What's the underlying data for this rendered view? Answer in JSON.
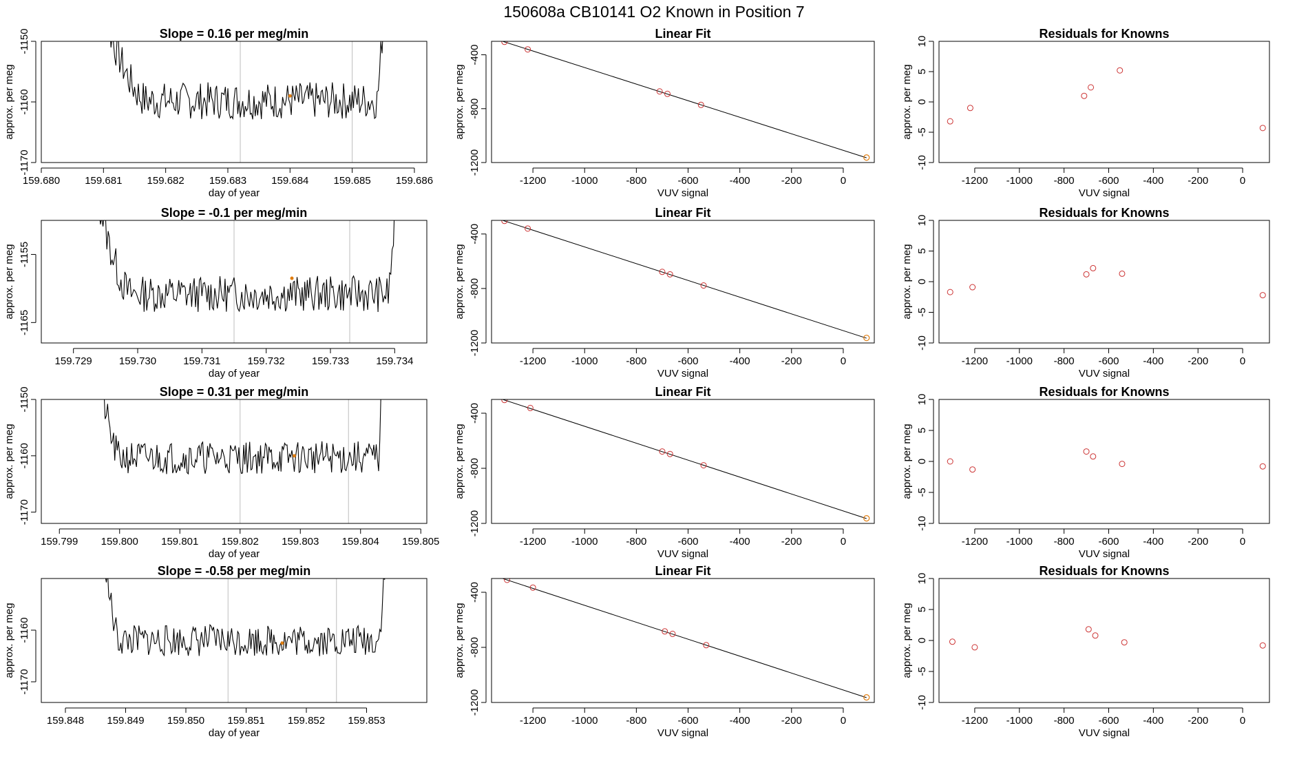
{
  "figure": {
    "title": "150608a      CB10141    O2 Known in Position  7"
  },
  "colors": {
    "trace": "#000000",
    "marker": "#e07d10",
    "fit_point": "#cc3333",
    "vline": "#bdbdbd",
    "axis": "#000000"
  },
  "chart_data": [
    {
      "type": "line",
      "panel": "slope",
      "row": 0,
      "title": "Slope =  0.16  per meg/min",
      "xlabel": "day of year",
      "ylabel": "approx. per meg",
      "xlim": [
        159.68,
        159.6862
      ],
      "ylim": [
        -1170,
        -1150
      ],
      "xticks": [
        159.68,
        159.681,
        159.682,
        159.683,
        159.684,
        159.685,
        159.686
      ],
      "xtick_labels": [
        "159.680",
        "159.681",
        "159.682",
        "159.683",
        "159.684",
        "159.685",
        "159.686"
      ],
      "yticks": [
        -1170,
        -1160,
        -1150
      ],
      "ytick_labels": [
        "-1170",
        "-1160",
        "-1150"
      ],
      "vlines": [
        159.6832,
        159.685
      ],
      "trace": {
        "x_start": 159.6808,
        "x_end": 159.6856,
        "level": -1159.8,
        "noise": 2.2,
        "edge_left": 159.6817,
        "edge_right": 159.6854,
        "rise": 22,
        "seed": 7
      },
      "marker": {
        "x": 159.684,
        "y": -1159.0
      }
    },
    {
      "type": "scatter",
      "panel": "fit",
      "row": 0,
      "title": "Linear Fit",
      "xlabel": "VUV signal",
      "ylabel": "approx. per meg",
      "xlim": [
        -1360,
        120
      ],
      "ylim": [
        -1200,
        -300
      ],
      "xticks": [
        -1200,
        -1000,
        -800,
        -600,
        -400,
        -200,
        0
      ],
      "xtick_labels": [
        "-1200",
        "-1000",
        "-800",
        "-600",
        "-400",
        "-200",
        "0"
      ],
      "yticks": [
        -1200,
        -800,
        -400
      ],
      "ytick_labels": [
        "-1200",
        "-800",
        "-400"
      ],
      "line": {
        "x": [
          -1330,
          90
        ],
        "y": [
          -292,
          -1165
        ]
      },
      "points": {
        "x": [
          -1310,
          -1220,
          -710,
          -680,
          -550
        ],
        "y": [
          -304,
          -360,
          -672,
          -690,
          -772
        ]
      },
      "known": {
        "x": 90,
        "y": -1163
      }
    },
    {
      "type": "scatter",
      "panel": "residuals",
      "row": 0,
      "title": "Residuals for Knowns",
      "xlabel": "VUV signal",
      "ylabel": "approx. per meg",
      "xlim": [
        -1360,
        120
      ],
      "ylim": [
        -10,
        10
      ],
      "xticks": [
        -1200,
        -1000,
        -800,
        -600,
        -400,
        -200,
        0
      ],
      "xtick_labels": [
        "-1200",
        "-1000",
        "-800",
        "-600",
        "-400",
        "-200",
        "0"
      ],
      "yticks": [
        -10,
        -5,
        0,
        5,
        10
      ],
      "ytick_labels": [
        "-10",
        "-5",
        "0",
        "5",
        "10"
      ],
      "points": {
        "x": [
          -1310,
          -1220,
          -710,
          -680,
          -550,
          90
        ],
        "y": [
          -3.2,
          -1.0,
          1.0,
          2.4,
          5.2,
          -4.3
        ]
      }
    },
    {
      "type": "line",
      "panel": "slope",
      "row": 1,
      "title": "Slope =  -0.1  per meg/min",
      "xlabel": "day of year",
      "ylabel": "approx. per meg",
      "xlim": [
        159.7285,
        159.7345
      ],
      "ylim": [
        -1168,
        -1150
      ],
      "xticks": [
        159.729,
        159.73,
        159.731,
        159.732,
        159.733,
        159.734
      ],
      "xtick_labels": [
        "159.729",
        "159.730",
        "159.731",
        "159.732",
        "159.733",
        "159.734"
      ],
      "yticks": [
        -1165,
        -1155
      ],
      "ytick_labels": [
        "-1165",
        "-1155"
      ],
      "vlines": [
        159.7315,
        159.7333
      ],
      "trace": {
        "x_start": 159.7293,
        "x_end": 159.7341,
        "level": -1160.8,
        "noise": 1.9,
        "edge_left": 159.7299,
        "edge_right": 159.7339,
        "rise": 18,
        "seed": 13
      },
      "marker": {
        "x": 159.7324,
        "y": -1158.5
      }
    },
    {
      "type": "scatter",
      "panel": "fit",
      "row": 1,
      "title": "Linear Fit",
      "xlabel": "VUV signal",
      "ylabel": "approx. per meg",
      "xlim": [
        -1360,
        120
      ],
      "ylim": [
        -1200,
        -300
      ],
      "xticks": [
        -1200,
        -1000,
        -800,
        -600,
        -400,
        -200,
        0
      ],
      "xtick_labels": [
        "-1200",
        "-1000",
        "-800",
        "-600",
        "-400",
        "-200",
        "0"
      ],
      "yticks": [
        -1200,
        -800,
        -400
      ],
      "ytick_labels": [
        "-1200",
        "-800",
        "-400"
      ],
      "line": {
        "x": [
          -1330,
          90
        ],
        "y": [
          -292,
          -1165
        ]
      },
      "points": {
        "x": [
          -1310,
          -1220,
          -700,
          -670,
          -540
        ],
        "y": [
          -304,
          -360,
          -678,
          -696,
          -778
        ]
      },
      "known": {
        "x": 90,
        "y": -1163
      }
    },
    {
      "type": "scatter",
      "panel": "residuals",
      "row": 1,
      "title": "Residuals for Knowns",
      "xlabel": "VUV signal",
      "ylabel": "approx. per meg",
      "xlim": [
        -1360,
        120
      ],
      "ylim": [
        -10,
        10
      ],
      "xticks": [
        -1200,
        -1000,
        -800,
        -600,
        -400,
        -200,
        0
      ],
      "xtick_labels": [
        "-1200",
        "-1000",
        "-800",
        "-600",
        "-400",
        "-200",
        "0"
      ],
      "yticks": [
        -10,
        -5,
        0,
        5,
        10
      ],
      "ytick_labels": [
        "-10",
        "-5",
        "0",
        "5",
        "10"
      ],
      "points": {
        "x": [
          -1310,
          -1210,
          -700,
          -670,
          -540,
          90
        ],
        "y": [
          -1.7,
          -0.9,
          1.2,
          2.2,
          1.3,
          -2.2
        ]
      }
    },
    {
      "type": "line",
      "panel": "slope",
      "row": 2,
      "title": "Slope =  0.31  per meg/min",
      "xlabel": "day of year",
      "ylabel": "approx. per meg",
      "xlim": [
        159.7987,
        159.8051
      ],
      "ylim": [
        -1172,
        -1150
      ],
      "xticks": [
        159.799,
        159.8,
        159.801,
        159.802,
        159.803,
        159.804,
        159.805
      ],
      "xtick_labels": [
        "159.799",
        "159.800",
        "159.801",
        "159.802",
        "159.803",
        "159.804",
        "159.805"
      ],
      "yticks": [
        -1170,
        -1160,
        -1150
      ],
      "ytick_labels": [
        "-1170",
        "-1160",
        "-1150"
      ],
      "vlines": [
        159.802,
        159.8038
      ],
      "trace": {
        "x_start": 159.7996,
        "x_end": 159.8044,
        "level": -1160.3,
        "noise": 2.1,
        "edge_left": 159.8,
        "edge_right": 159.8043,
        "rise": 20,
        "seed": 21
      },
      "marker": {
        "x": 159.8029,
        "y": -1160.0
      }
    },
    {
      "type": "scatter",
      "panel": "fit",
      "row": 2,
      "title": "Linear Fit",
      "xlabel": "VUV signal",
      "ylabel": "approx. per meg",
      "xlim": [
        -1360,
        120
      ],
      "ylim": [
        -1200,
        -300
      ],
      "xticks": [
        -1200,
        -1000,
        -800,
        -600,
        -400,
        -200,
        0
      ],
      "xtick_labels": [
        "-1200",
        "-1000",
        "-800",
        "-600",
        "-400",
        "-200",
        "0"
      ],
      "yticks": [
        -1200,
        -800,
        -400
      ],
      "ytick_labels": [
        "-1200",
        "-800",
        "-400"
      ],
      "line": {
        "x": [
          -1330,
          90
        ],
        "y": [
          -292,
          -1165
        ]
      },
      "points": {
        "x": [
          -1310,
          -1210,
          -700,
          -670,
          -540
        ],
        "y": [
          -304,
          -362,
          -678,
          -696,
          -778
        ]
      },
      "known": {
        "x": 90,
        "y": -1163
      }
    },
    {
      "type": "scatter",
      "panel": "residuals",
      "row": 2,
      "title": "Residuals for Knowns",
      "xlabel": "VUV signal",
      "ylabel": "approx. per meg",
      "xlim": [
        -1360,
        120
      ],
      "ylim": [
        -10,
        10
      ],
      "xticks": [
        -1200,
        -1000,
        -800,
        -600,
        -400,
        -200,
        0
      ],
      "xtick_labels": [
        "-1200",
        "-1000",
        "-800",
        "-600",
        "-400",
        "-200",
        "0"
      ],
      "yticks": [
        -10,
        -5,
        0,
        5,
        10
      ],
      "ytick_labels": [
        "-10",
        "-5",
        "0",
        "5",
        "10"
      ],
      "points": {
        "x": [
          -1310,
          -1210,
          -700,
          -670,
          -540,
          90
        ],
        "y": [
          0.0,
          -1.3,
          1.6,
          0.8,
          -0.4,
          -0.8
        ]
      }
    },
    {
      "type": "line",
      "panel": "slope",
      "row": 3,
      "title": "Slope =  -0.58  per meg/min",
      "xlabel": "day of year",
      "ylabel": "approx. per meg",
      "xlim": [
        159.8476,
        159.854
      ],
      "ylim": [
        -1174,
        -1150
      ],
      "xticks": [
        159.848,
        159.849,
        159.85,
        159.851,
        159.852,
        159.853
      ],
      "xtick_labels": [
        "159.848",
        "159.849",
        "159.850",
        "159.851",
        "159.852",
        "159.853"
      ],
      "yticks": [
        -1170,
        -1160
      ],
      "ytick_labels": [
        "-1170",
        "-1160"
      ],
      "vlines": [
        159.8507,
        159.8525
      ],
      "trace": {
        "x_start": 159.8486,
        "x_end": 159.8534,
        "level": -1162.0,
        "noise": 2.2,
        "edge_left": 159.8489,
        "edge_right": 159.8532,
        "rise": 22,
        "seed": 33
      },
      "marker": {
        "x": 159.8516,
        "y": -1162.5
      }
    },
    {
      "type": "scatter",
      "panel": "fit",
      "row": 3,
      "title": "Linear Fit",
      "xlabel": "VUV signal",
      "ylabel": "approx. per meg",
      "xlim": [
        -1360,
        120
      ],
      "ylim": [
        -1200,
        -300
      ],
      "xticks": [
        -1200,
        -1000,
        -800,
        -600,
        -400,
        -200,
        0
      ],
      "xtick_labels": [
        "-1200",
        "-1000",
        "-800",
        "-600",
        "-400",
        "-200",
        "0"
      ],
      "yticks": [
        -1200,
        -800,
        -400
      ],
      "ytick_labels": [
        "-1200",
        "-800",
        "-400"
      ],
      "line": {
        "x": [
          -1330,
          90
        ],
        "y": [
          -292,
          -1165
        ]
      },
      "points": {
        "x": [
          -1300,
          -1200,
          -690,
          -660,
          -530
        ],
        "y": [
          -310,
          -366,
          -684,
          -702,
          -784
        ]
      },
      "known": {
        "x": 90,
        "y": -1163
      }
    },
    {
      "type": "scatter",
      "panel": "residuals",
      "row": 3,
      "title": "Residuals for Knowns",
      "xlabel": "VUV signal",
      "ylabel": "approx. per meg",
      "xlim": [
        -1360,
        120
      ],
      "ylim": [
        -10,
        10
      ],
      "xticks": [
        -1200,
        -1000,
        -800,
        -600,
        -400,
        -200,
        0
      ],
      "xtick_labels": [
        "-1200",
        "-1000",
        "-800",
        "-600",
        "-400",
        "-200",
        "0"
      ],
      "yticks": [
        -10,
        -5,
        0,
        5,
        10
      ],
      "ytick_labels": [
        "-10",
        "-5",
        "0",
        "5",
        "10"
      ],
      "points": {
        "x": [
          -1300,
          -1200,
          -690,
          -660,
          -530,
          90
        ],
        "y": [
          -0.2,
          -1.1,
          1.8,
          0.8,
          -0.3,
          -0.8
        ]
      }
    }
  ]
}
